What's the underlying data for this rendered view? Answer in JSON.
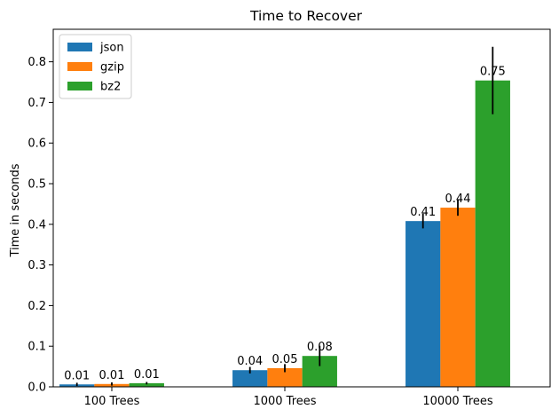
{
  "chart_data": {
    "type": "bar",
    "title": "Time to Recover",
    "xlabel": "",
    "ylabel": "Time in seconds",
    "categories": [
      "100 Trees",
      "1000 Trees",
      "10000 Trees"
    ],
    "ylim": [
      0,
      0.88
    ],
    "yticks": [
      "0.0",
      "0.1",
      "0.2",
      "0.3",
      "0.4",
      "0.5",
      "0.6",
      "0.7",
      "0.8"
    ],
    "grid": false,
    "legend_position": "top-left",
    "series": [
      {
        "name": "json",
        "color": "#1f77b4",
        "values": [
          0.006,
          0.041,
          0.408
        ],
        "errors": [
          0.004,
          0.008,
          0.018
        ],
        "labels": [
          "0.01",
          "0.04",
          "0.41"
        ]
      },
      {
        "name": "gzip",
        "color": "#ff7f0e",
        "values": [
          0.007,
          0.046,
          0.441
        ],
        "errors": [
          0.004,
          0.01,
          0.02
        ],
        "labels": [
          "0.01",
          "0.05",
          "0.44"
        ]
      },
      {
        "name": "bz2",
        "color": "#2ca02c",
        "values": [
          0.009,
          0.076,
          0.754
        ],
        "errors": [
          0.003,
          0.025,
          0.083
        ],
        "labels": [
          "0.01",
          "0.08",
          "0.75"
        ]
      }
    ]
  }
}
